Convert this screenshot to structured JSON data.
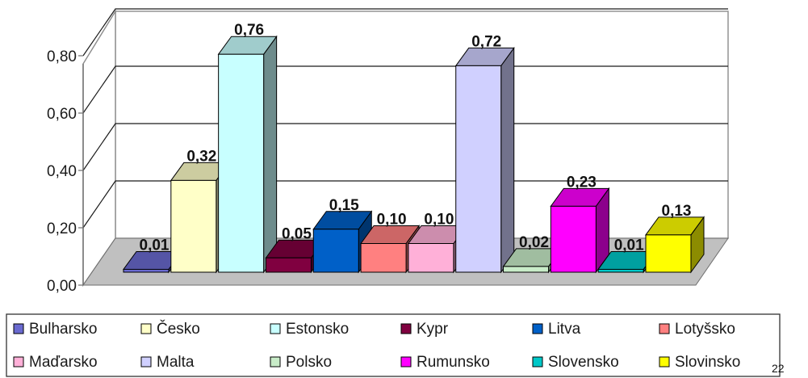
{
  "chart_data": {
    "type": "bar",
    "three_d": true,
    "categories": [
      "Bulharsko",
      "Česko",
      "Estonsko",
      "Kypr",
      "Litva",
      "Lotyšsko",
      "Maďarsko",
      "Malta",
      "Polsko",
      "Rumunsko",
      "Slovensko",
      "Slovinsko"
    ],
    "values": [
      0.01,
      0.32,
      0.76,
      0.05,
      0.15,
      0.1,
      0.1,
      0.72,
      0.02,
      0.23,
      0.01,
      0.13
    ],
    "value_labels": [
      "0,01",
      "0,32",
      "0,76",
      "0,05",
      "0,15",
      "0,10",
      "0,10",
      "0,72",
      "0,02",
      "0,23",
      "0,01",
      "0,13"
    ],
    "colors": [
      "#6a6ad0",
      "#ffffc8",
      "#c8ffff",
      "#800040",
      "#0060c8",
      "#ff8080",
      "#ffb0d8",
      "#d0d0ff",
      "#c8ecc8",
      "#ff00ff",
      "#00c8c8",
      "#ffff00"
    ],
    "ylim": [
      0,
      0.8
    ],
    "yticks": [
      0,
      0.2,
      0.4,
      0.6,
      0.8
    ],
    "ytick_labels": [
      "0,00",
      "0,20",
      "0,40",
      "0,60",
      "0,80"
    ],
    "grid": true,
    "legend": "bottom",
    "title": "",
    "xlabel": "",
    "ylabel": ""
  },
  "legend_rows": [
    [
      "Bulharsko",
      "Česko",
      "Estonsko",
      "Kypr",
      "Litva",
      "Lotyšsko"
    ],
    [
      "Maďarsko",
      "Malta",
      "Polsko",
      "Rumunsko",
      "Slovensko",
      "Slovinsko"
    ]
  ],
  "corner_text": "22"
}
